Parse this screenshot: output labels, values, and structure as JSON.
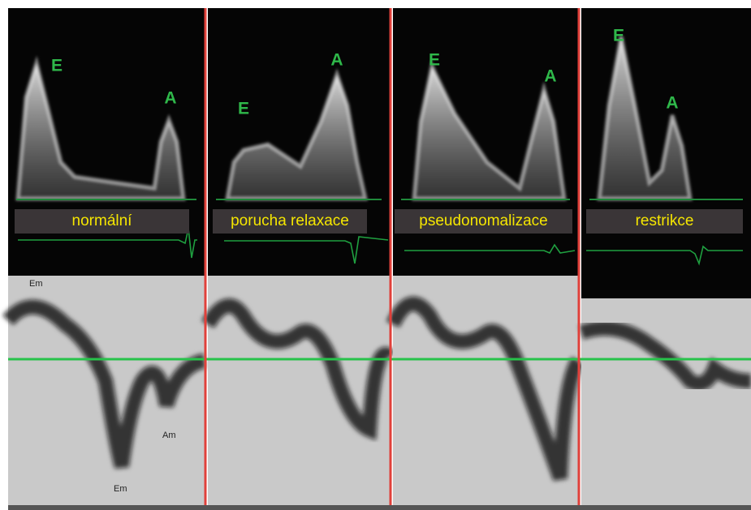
{
  "panels": [
    {
      "label": "normální",
      "e": "E",
      "a": "A",
      "tissue_labels": [
        "Em",
        "Am",
        "Em"
      ]
    },
    {
      "label": "porucha relaxace",
      "e": "E",
      "a": "A"
    },
    {
      "label": "pseudonomalizace",
      "e": "E",
      "a": "A"
    },
    {
      "label": "restrikce",
      "e": "E",
      "a": "A"
    }
  ]
}
